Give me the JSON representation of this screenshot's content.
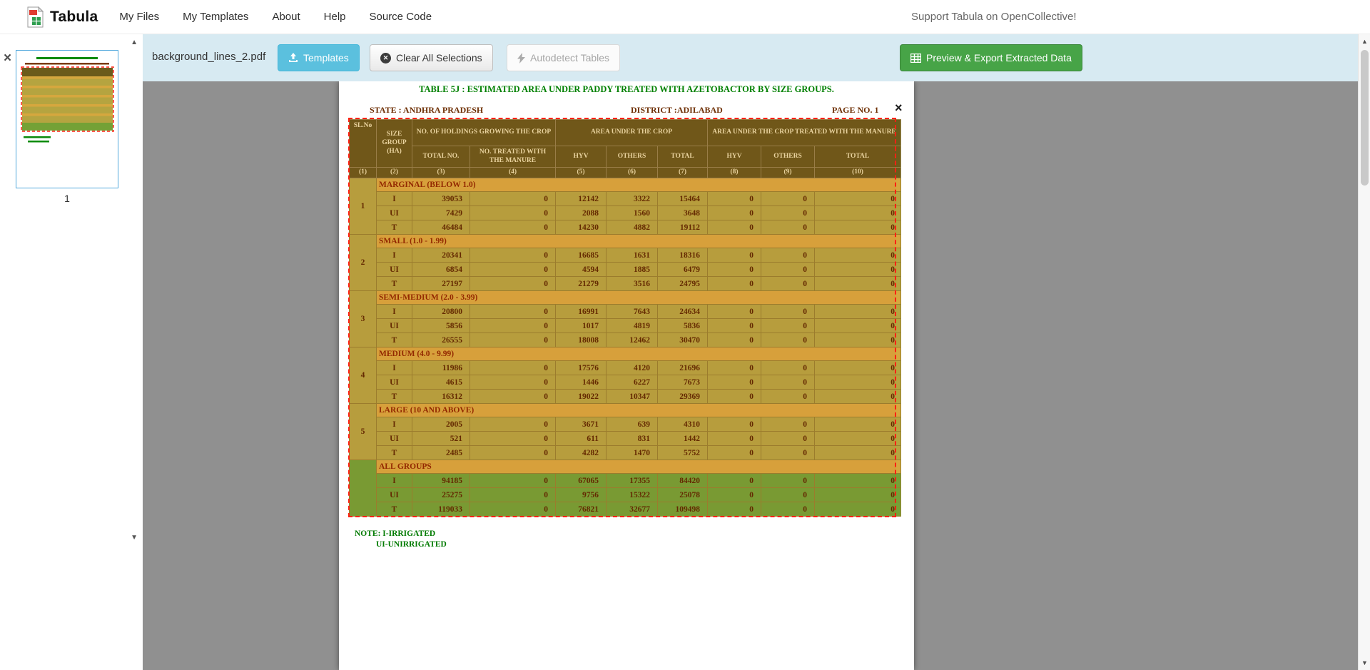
{
  "colors": {
    "toolbar_bg": "#d7eaf2",
    "templates_button": "#5bc0de",
    "export_button": "#47a447",
    "selection_border": "#ff2114",
    "table_header_bg": "#6b5b1b",
    "table_row_bg": "#b5a440",
    "group_label_bg": "#d6a73e",
    "all_groups_row_bg": "#74a136",
    "pdf_title_green": "#008000",
    "pdf_text_maroon": "#6e2f04"
  },
  "navbar": {
    "brand": "Tabula",
    "links": [
      "My Files",
      "My Templates",
      "About",
      "Help",
      "Source Code"
    ],
    "support_text": "Support Tabula on OpenCollective!"
  },
  "toolbar": {
    "filename": "background_lines_2.pdf",
    "templates_label": "Templates",
    "clear_label": "Clear All Selections",
    "autodetect_label": "Autodetect Tables",
    "export_label": "Preview & Export Extracted Data"
  },
  "sidebar": {
    "page_number": "1"
  },
  "scrollbar": {
    "up_icon": "▲",
    "down_icon": "▼"
  },
  "pdf": {
    "title": "TABLE 5J : ESTIMATED AREA UNDER PADDY TREATED WITH AZETOBACTOR BY SIZE GROUPS.",
    "state_label": "STATE :",
    "state_value": "ANDHRA PRADESH",
    "district_label": "DISTRICT :",
    "district_value": "ADILABAD",
    "page_no": "PAGE NO. 1",
    "note_line1": "NOTE: I-IRRIGATED",
    "note_line2": "UI-UNIRRIGATED",
    "table": {
      "header": {
        "sl_no": "SL.No",
        "size_group": "SIZE GROUP (HA)",
        "holdings": "NO. OF HOLDINGS GROWING THE CROP",
        "area": "AREA UNDER THE CROP",
        "area_treated": "AREA UNDER THE CROP TREATED WITH THE MANURE",
        "total_no": "TOTAL NO.",
        "treated": "NO. TREATED WITH THE MANURE",
        "hyv": "HYV",
        "others": "OTHERS",
        "total": "TOTAL",
        "col_numbers": [
          "(1)",
          "(2)",
          "(3)",
          "(4)",
          "(5)",
          "(6)",
          "(7)",
          "(8)",
          "(9)",
          "(10)"
        ]
      },
      "groups": [
        {
          "sl_no": "1",
          "label": "MARGINAL (BELOW 1.0)",
          "all_groups": false,
          "rows": [
            [
              "I",
              "39053",
              "0",
              "12142",
              "3322",
              "15464",
              "0",
              "0",
              "0"
            ],
            [
              "UI",
              "7429",
              "0",
              "2088",
              "1560",
              "3648",
              "0",
              "0",
              "0"
            ],
            [
              "T",
              "46484",
              "0",
              "14230",
              "4882",
              "19112",
              "0",
              "0",
              "0"
            ]
          ]
        },
        {
          "sl_no": "2",
          "label": "SMALL (1.0 - 1.99)",
          "all_groups": false,
          "rows": [
            [
              "I",
              "20341",
              "0",
              "16685",
              "1631",
              "18316",
              "0",
              "0",
              "0"
            ],
            [
              "UI",
              "6854",
              "0",
              "4594",
              "1885",
              "6479",
              "0",
              "0",
              "0"
            ],
            [
              "T",
              "27197",
              "0",
              "21279",
              "3516",
              "24795",
              "0",
              "0",
              "0"
            ]
          ]
        },
        {
          "sl_no": "3",
          "label": "SEMI-MEDIUM (2.0 - 3.99)",
          "all_groups": false,
          "rows": [
            [
              "I",
              "20800",
              "0",
              "16991",
              "7643",
              "24634",
              "0",
              "0",
              "0"
            ],
            [
              "UI",
              "5856",
              "0",
              "1017",
              "4819",
              "5836",
              "0",
              "0",
              "0"
            ],
            [
              "T",
              "26555",
              "0",
              "18008",
              "12462",
              "30470",
              "0",
              "0",
              "0"
            ]
          ]
        },
        {
          "sl_no": "4",
          "label": "MEDIUM (4.0 - 9.99)",
          "all_groups": false,
          "rows": [
            [
              "I",
              "11986",
              "0",
              "17576",
              "4120",
              "21696",
              "0",
              "0",
              "0"
            ],
            [
              "UI",
              "4615",
              "0",
              "1446",
              "6227",
              "7673",
              "0",
              "0",
              "0"
            ],
            [
              "T",
              "16312",
              "0",
              "19022",
              "10347",
              "29369",
              "0",
              "0",
              "0"
            ]
          ]
        },
        {
          "sl_no": "5",
          "label": "LARGE (10 AND ABOVE)",
          "all_groups": false,
          "rows": [
            [
              "I",
              "2005",
              "0",
              "3671",
              "639",
              "4310",
              "0",
              "0",
              "0"
            ],
            [
              "UI",
              "521",
              "0",
              "611",
              "831",
              "1442",
              "0",
              "0",
              "0"
            ],
            [
              "T",
              "2485",
              "0",
              "4282",
              "1470",
              "5752",
              "0",
              "0",
              "0"
            ]
          ]
        },
        {
          "sl_no": "",
          "label": "ALL GROUPS",
          "all_groups": true,
          "rows": [
            [
              "I",
              "94185",
              "0",
              "67065",
              "17355",
              "84420",
              "0",
              "0",
              "0"
            ],
            [
              "UI",
              "25275",
              "0",
              "9756",
              "15322",
              "25078",
              "0",
              "0",
              "0"
            ],
            [
              "T",
              "119033",
              "0",
              "76821",
              "32677",
              "109498",
              "0",
              "0",
              "0"
            ]
          ]
        }
      ]
    }
  }
}
